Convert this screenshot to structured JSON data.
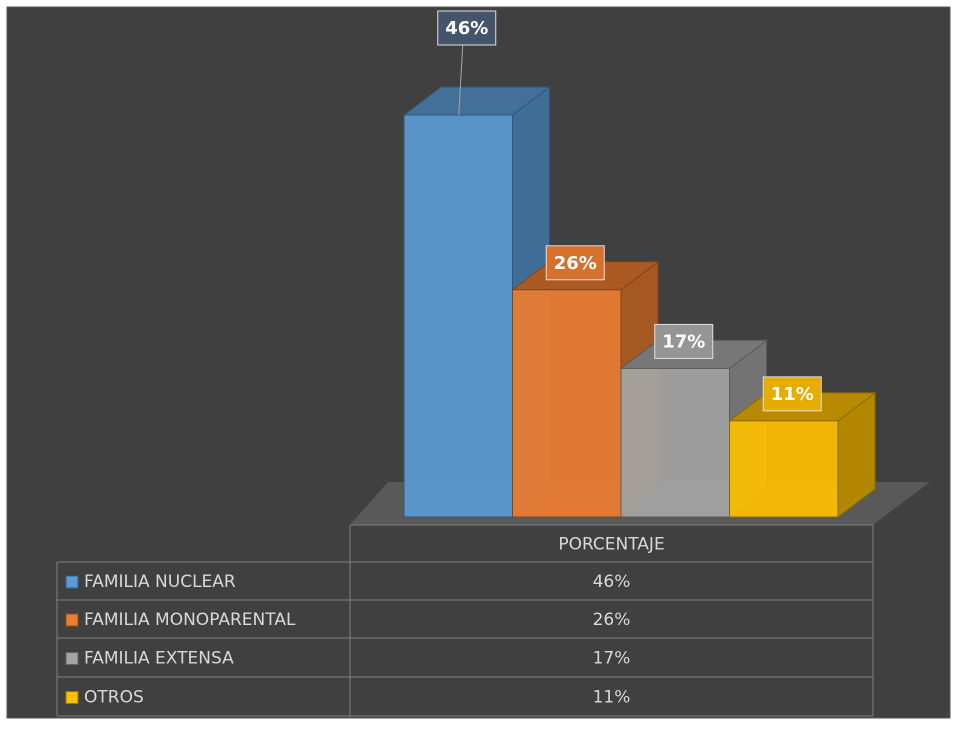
{
  "chart_data": {
    "type": "bar",
    "categories": [
      "PORCENTAJE"
    ],
    "series": [
      {
        "name": "FAMILIA NUCLEAR",
        "color": "#5b9bd5",
        "values": [
          46
        ],
        "value_labels": [
          "46%"
        ]
      },
      {
        "name": "FAMILIA MONOPARENTAL",
        "color": "#ed7d31",
        "values": [
          26
        ],
        "value_labels": [
          "26%"
        ]
      },
      {
        "name": "FAMILIA EXTENSA",
        "color": "#a5a5a5",
        "values": [
          17
        ],
        "value_labels": [
          "17%"
        ]
      },
      {
        "name": "OTROS",
        "color": "#ffc000",
        "values": [
          11
        ],
        "value_labels": [
          "11%"
        ]
      }
    ]
  }
}
